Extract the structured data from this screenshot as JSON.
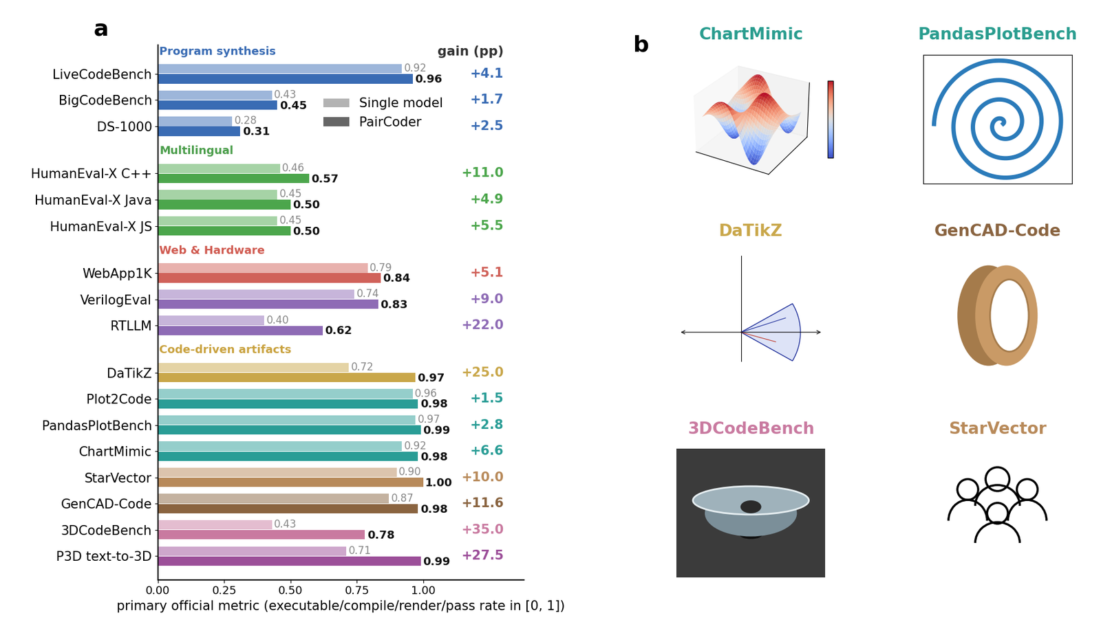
{
  "chart_data": {
    "type": "bar",
    "orientation": "horizontal",
    "panel_label": "a",
    "xlabel": "primary official metric (executable/compile/render/pass rate in [0, 1])",
    "xlim": [
      0,
      1.38
    ],
    "xticks": [
      {
        "value": 0,
        "label": "0.00"
      },
      {
        "value": 0.25,
        "label": "0.25"
      },
      {
        "value": 0.5,
        "label": "0.50"
      },
      {
        "value": 0.75,
        "label": "0.75"
      },
      {
        "value": 1.0,
        "label": "1.00"
      }
    ],
    "grid": false,
    "legend": "center left",
    "data_labels": true,
    "series": [
      {
        "name": "Single model",
        "color": "#b3b3b3"
      },
      {
        "name": "PairCoder",
        "color": "#666666"
      }
    ],
    "gain_title": "gain (pp)",
    "sections": [
      {
        "label": "Program synthesis",
        "color": "#3a6cb4",
        "categories": [
          "LiveCodeBench",
          "BigCodeBench",
          "DS-1000"
        ],
        "colors": [
          "#3a6cb4",
          "#3a6cb4",
          "#3a6cb4"
        ],
        "values": [
          [
            0.92,
            0.43,
            0.28
          ],
          [
            0.96,
            0.45,
            0.31
          ]
        ],
        "value_labels": [
          [
            "0.92",
            "0.43",
            "0.28"
          ],
          [
            "0.96",
            "0.45",
            "0.31"
          ]
        ],
        "gain": [
          4.1,
          1.7,
          2.5
        ],
        "gain_labels": [
          "+4.1",
          "+1.7",
          "+2.5"
        ]
      },
      {
        "label": "Multilingual",
        "color": "#4a9d4a",
        "categories": [
          "HumanEval-X C++",
          "HumanEval-X Java",
          "HumanEval-X JS"
        ],
        "colors": [
          "#4ca64c",
          "#4ca64c",
          "#4ca64c"
        ],
        "values": [
          [
            0.46,
            0.45,
            0.45
          ],
          [
            0.57,
            0.5,
            0.5
          ]
        ],
        "value_labels": [
          [
            "0.46",
            "0.45",
            "0.45"
          ],
          [
            "0.57",
            "0.50",
            "0.50"
          ]
        ],
        "gain": [
          11.0,
          4.9,
          5.5
        ],
        "gain_labels": [
          "+11.0",
          "+4.9",
          "+5.5"
        ]
      },
      {
        "label": "Web & Hardware",
        "color": "#d05a50",
        "categories": [
          "WebApp1K",
          "VerilogEval",
          "RTLLM"
        ],
        "colors": [
          "#d0625a",
          "#8e6bb5",
          "#8e6bb5"
        ],
        "values": [
          [
            0.79,
            0.74,
            0.4
          ],
          [
            0.84,
            0.83,
            0.62
          ]
        ],
        "value_labels": [
          [
            "0.79",
            "0.74",
            "0.40"
          ],
          [
            "0.84",
            "0.83",
            "0.62"
          ]
        ],
        "gain": [
          5.1,
          9.0,
          22.0
        ],
        "gain_labels": [
          "+5.1",
          "+9.0",
          "+22.0"
        ]
      },
      {
        "label": "Code-driven artifacts",
        "color": "#c9a23f",
        "categories": [
          "DaTikZ",
          "Plot2Code",
          "PandasPlotBench",
          "ChartMimic",
          "StarVector",
          "GenCAD-Code",
          "3DCodeBench",
          "P3D text-to-3D"
        ],
        "colors": [
          "#c9a74a",
          "#2a9d96",
          "#2a9d96",
          "#2a9d96",
          "#b88a5a",
          "#8a6440",
          "#c97aa0",
          "#9c4f99"
        ],
        "values": [
          [
            0.72,
            0.96,
            0.97,
            0.92,
            0.9,
            0.87,
            0.43,
            0.71
          ],
          [
            0.97,
            0.98,
            0.99,
            0.98,
            1.0,
            0.98,
            0.78,
            0.99
          ]
        ],
        "value_labels": [
          [
            "0.72",
            "0.96",
            "0.97",
            "0.92",
            "0.90",
            "0.87",
            "0.43",
            "0.71"
          ],
          [
            "0.97",
            "0.98",
            "0.99",
            "0.98",
            "1.00",
            "0.98",
            "0.78",
            "0.99"
          ]
        ],
        "gain": [
          25.0,
          1.5,
          2.8,
          6.6,
          10.0,
          11.6,
          35.0,
          27.5
        ],
        "gain_labels": [
          "+25.0",
          "+1.5",
          "+2.8",
          "+6.6",
          "+10.0",
          "+11.6",
          "+35.0",
          "+27.5"
        ]
      }
    ]
  },
  "panel_b": {
    "panel_label": "b",
    "thumbnails": [
      {
        "title": "ChartMimic",
        "color": "#2a9d8f"
      },
      {
        "title": "PandasPlotBench",
        "color": "#2a9d8f"
      },
      {
        "title": "DaTikZ",
        "color": "#c9a74a"
      },
      {
        "title": "GenCAD-Code",
        "color": "#8a6440"
      },
      {
        "title": "3DCodeBench",
        "color": "#c97aa0"
      },
      {
        "title": "StarVector",
        "color": "#b88a5a"
      }
    ]
  }
}
